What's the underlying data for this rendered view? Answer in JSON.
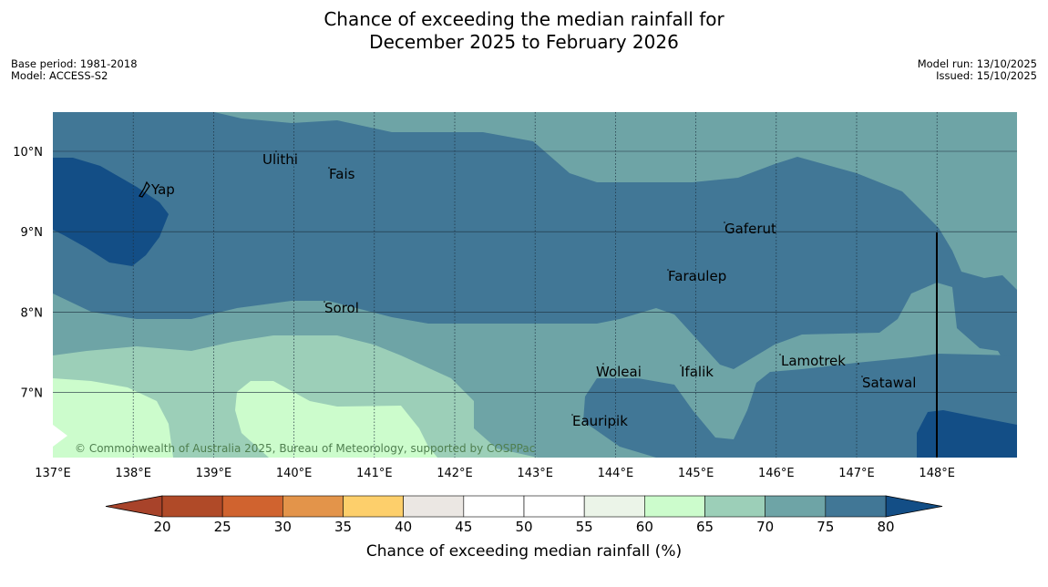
{
  "title": {
    "line1": "Chance of exceeding the median rainfall for",
    "line2": "December 2025 to February 2026"
  },
  "meta_left": {
    "base_period": "Base period: 1981-2018",
    "model": "Model: ACCESS-S2"
  },
  "meta_right": {
    "model_run": "Model run: 13/10/2025",
    "issued": "Issued: 15/10/2025"
  },
  "map": {
    "copyright": "© Commonwealth of Australia 2025, Bureau of Meteorology, supported by COSPPac",
    "places": {
      "yap": "Yap",
      "ulithi": "Ulithi",
      "fais": "Fais",
      "gaferut": "Gaferut",
      "faraulep": "Faraulep",
      "sorol": "Sorol",
      "woleai": "Woleai",
      "ifalik": "Ifalik",
      "lamotrek": "Lamotrek",
      "satawal": "Satawal",
      "eauripik": "Eauripik"
    },
    "lon_ticks": [
      "137°E",
      "138°E",
      "139°E",
      "140°E",
      "141°E",
      "142°E",
      "143°E",
      "144°E",
      "145°E",
      "146°E",
      "147°E",
      "148°E"
    ],
    "lat_ticks": [
      "10°N",
      "9°N",
      "8°N",
      "7°N"
    ]
  },
  "colorbar": {
    "label": "Chance of exceeding median rainfall (%)",
    "ticks": [
      "20",
      "25",
      "30",
      "35",
      "40",
      "45",
      "50",
      "55",
      "60",
      "65",
      "70",
      "75",
      "80"
    ],
    "colors": [
      "#b04a28",
      "#d0632f",
      "#e3944a",
      "#fdcf6b",
      "#ebe7e3",
      "#ffffff",
      "#ffffff",
      "#ebf4e8",
      "#ccfccc",
      "#9ccfb8",
      "#6ea4a6",
      "#417796"
    ],
    "under_color": "#a8432a",
    "over_color": "#134e86"
  }
}
